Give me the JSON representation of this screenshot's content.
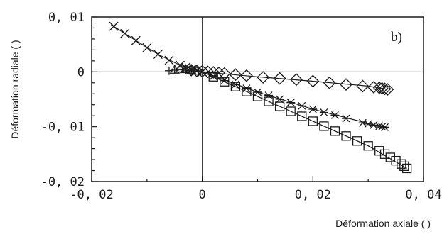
{
  "chart_data": {
    "type": "scatter",
    "title": "",
    "panel_label": "b)",
    "xlabel": "Déformation axiale ( )",
    "ylabel": "Déformation radiale ( )",
    "xlim": [
      -0.02,
      0.04
    ],
    "ylim": [
      -0.02,
      0.01
    ],
    "x_ticks": [
      -0.02,
      0,
      0.02,
      0.04
    ],
    "x_tick_labels": [
      "-0, 02",
      "0",
      "0, 02",
      "0, 04"
    ],
    "y_ticks": [
      0.01,
      0,
      -0.01,
      -0.02
    ],
    "y_tick_labels": [
      "0, 01",
      "0",
      "-0, 01",
      "-0, 02"
    ],
    "zero_lines": true,
    "grid": false,
    "series": [
      {
        "marker": "diamond",
        "x": [
          -0.002,
          -0.001,
          0.0,
          0.001,
          0.002,
          0.003,
          0.004,
          0.006,
          0.008,
          0.011,
          0.014,
          0.017,
          0.02,
          0.023,
          0.026,
          0.029,
          0.031,
          0.032,
          0.0325,
          0.033,
          0.0335
        ],
        "y": [
          0.0003,
          0.0002,
          0.0001,
          0.0,
          -0.0001,
          -0.0002,
          -0.0003,
          -0.0005,
          -0.0007,
          -0.001,
          -0.0012,
          -0.0014,
          -0.0017,
          -0.002,
          -0.0023,
          -0.0026,
          -0.0028,
          -0.0029,
          -0.003,
          -0.0031,
          -0.0032
        ],
        "fit": [
          [
            -0.003,
            0.0003
          ],
          [
            0.0,
            0.0
          ],
          [
            0.01,
            -0.0009
          ],
          [
            0.02,
            -0.0017
          ],
          [
            0.03,
            -0.0026
          ],
          [
            0.0335,
            -0.0032
          ]
        ]
      },
      {
        "marker": "x",
        "x": [
          -0.016,
          -0.014,
          -0.012,
          -0.01,
          -0.008,
          -0.006,
          -0.004,
          -0.003,
          -0.002,
          -0.001,
          0.0
        ],
        "y": [
          0.0083,
          0.007,
          0.0057,
          0.0044,
          0.0032,
          0.0021,
          0.0012,
          0.0008,
          0.0004,
          0.0002,
          0.0
        ],
        "fit": [
          [
            -0.0165,
            0.0086
          ],
          [
            -0.012,
            0.0057
          ],
          [
            -0.008,
            0.0032
          ],
          [
            -0.004,
            0.0012
          ],
          [
            0.0,
            0.0
          ]
        ]
      },
      {
        "marker": "plus",
        "x": [
          -0.006,
          -0.005,
          -0.004,
          -0.003,
          -0.002
        ],
        "y": [
          0.0002,
          0.0003,
          0.0004,
          0.0003,
          0.0002
        ]
      },
      {
        "marker": "triangle",
        "x": [
          -0.005,
          -0.004,
          -0.003,
          -0.002,
          -0.001
        ],
        "y": [
          0.0004,
          0.0006,
          0.0005,
          0.0004,
          0.0002
        ]
      },
      {
        "marker": "asterisk",
        "x": [
          0.002,
          0.004,
          0.006,
          0.008,
          0.01,
          0.012,
          0.014,
          0.016,
          0.018,
          0.02,
          0.022,
          0.024,
          0.026,
          0.029,
          0.03,
          0.031,
          0.032,
          0.0325,
          0.033
        ],
        "y": [
          -0.0008,
          -0.0016,
          -0.0023,
          -0.003,
          -0.0037,
          -0.0043,
          -0.005,
          -0.0056,
          -0.0062,
          -0.0068,
          -0.0074,
          -0.0079,
          -0.0085,
          -0.0093,
          -0.0095,
          -0.0097,
          -0.0099,
          -0.01,
          -0.0101
        ],
        "fit": [
          [
            0.0,
            0.0
          ],
          [
            0.01,
            -0.0037
          ],
          [
            0.02,
            -0.0068
          ],
          [
            0.0335,
            -0.0103
          ]
        ]
      },
      {
        "marker": "square",
        "x": [
          0.002,
          0.004,
          0.006,
          0.008,
          0.01,
          0.012,
          0.014,
          0.016,
          0.018,
          0.02,
          0.022,
          0.024,
          0.026,
          0.028,
          0.03,
          0.032,
          0.033,
          0.034,
          0.035,
          0.036,
          0.0365,
          0.037
        ],
        "y": [
          -0.0009,
          -0.0018,
          -0.0027,
          -0.0036,
          -0.0045,
          -0.0054,
          -0.0063,
          -0.0072,
          -0.0081,
          -0.009,
          -0.0099,
          -0.0108,
          -0.0117,
          -0.0126,
          -0.0135,
          -0.0144,
          -0.015,
          -0.0156,
          -0.0162,
          -0.0168,
          -0.0172,
          -0.0176
        ],
        "fit": [
          [
            0.0,
            0.0
          ],
          [
            0.01,
            -0.0045
          ],
          [
            0.02,
            -0.009
          ],
          [
            0.03,
            -0.0135
          ],
          [
            0.037,
            -0.0176
          ]
        ]
      }
    ]
  }
}
